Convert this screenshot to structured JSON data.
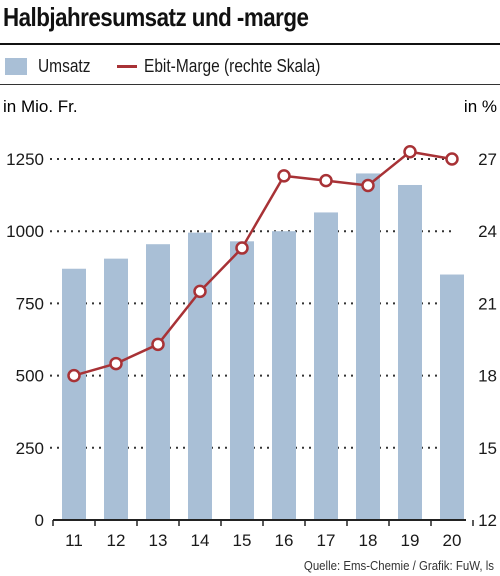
{
  "title": "Halbjahresumsatz und -marge",
  "legend": {
    "bars_label": "Umsatz",
    "line_label": "Ebit-Marge (rechte Skala)"
  },
  "source": "Quelle: Ems-Chemie / Grafik: FuW, ls",
  "colors": {
    "bars": "#a9bfd6",
    "line": "#a83236",
    "grid": "#333333",
    "text": "#1a1a1a"
  },
  "chart_data": {
    "type": "bar",
    "categories": [
      "11",
      "12",
      "13",
      "14",
      "15",
      "16",
      "17",
      "18",
      "19",
      "20"
    ],
    "series": [
      {
        "name": "Umsatz",
        "type": "bar",
        "axis": "left",
        "values": [
          870,
          905,
          955,
          995,
          965,
          1000,
          1065,
          1200,
          1160,
          850
        ]
      },
      {
        "name": "Ebit-Marge (rechte Skala)",
        "type": "line",
        "axis": "right",
        "values": [
          18.0,
          18.5,
          19.3,
          21.5,
          23.3,
          26.3,
          26.1,
          25.9,
          27.3,
          27.0
        ]
      }
    ],
    "ylabel": "in Mio. Fr.",
    "ylabel_right": "in %",
    "ylim": [
      0,
      1250
    ],
    "ylim_right": [
      12,
      27
    ],
    "yticks": [
      "0",
      "250",
      "500",
      "750",
      "1000",
      "1250"
    ],
    "yticks_right": [
      "12",
      "15",
      "18",
      "21",
      "24",
      "27"
    ],
    "grid": "dotted horizontal"
  }
}
